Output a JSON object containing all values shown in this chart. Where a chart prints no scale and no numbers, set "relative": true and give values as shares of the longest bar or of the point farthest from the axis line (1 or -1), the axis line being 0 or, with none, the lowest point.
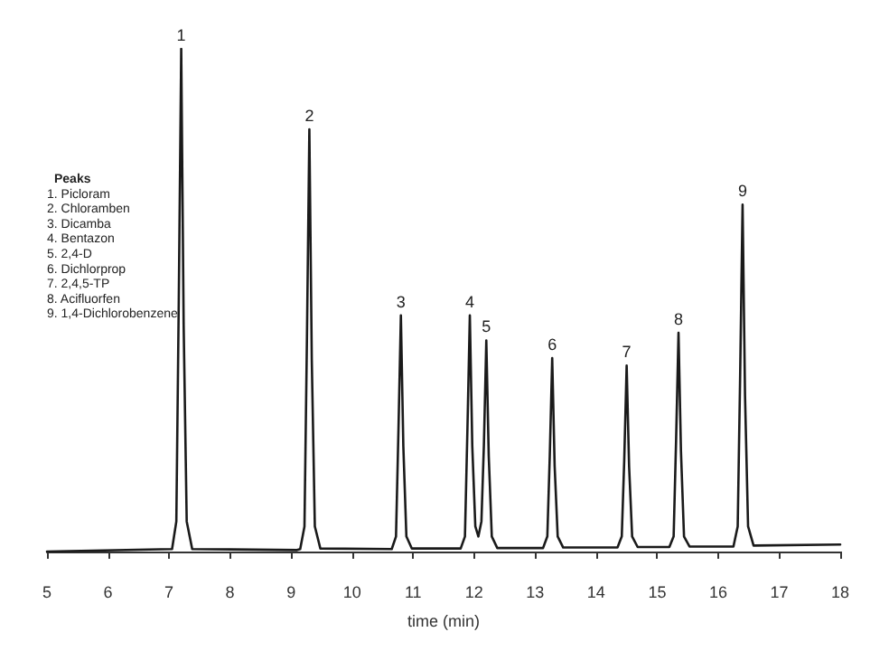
{
  "chart_data": {
    "type": "line",
    "relative": true,
    "xlabel": "time (min)",
    "xlim": [
      5,
      18
    ],
    "xticks": [
      5,
      6,
      7,
      8,
      9,
      10,
      11,
      12,
      13,
      14,
      15,
      16,
      17,
      18
    ],
    "grid": false,
    "marker": "none",
    "line_style": "solid",
    "series": [
      {
        "color": "#1a1a1a",
        "x": [
          5,
          7.05,
          7.12,
          7.16,
          7.2,
          7.24,
          7.29,
          7.38,
          9.1,
          9.15,
          9.22,
          9.26,
          9.3,
          9.34,
          9.39,
          9.48,
          10.65,
          10.72,
          10.76,
          10.8,
          10.84,
          10.89,
          10.98,
          11.78,
          11.85,
          11.89,
          11.93,
          11.97,
          12.02,
          12.07,
          12.12,
          12.16,
          12.2,
          12.24,
          12.29,
          12.38,
          13.13,
          13.2,
          13.24,
          13.28,
          13.32,
          13.37,
          13.46,
          14.35,
          14.42,
          14.46,
          14.5,
          14.54,
          14.59,
          14.68,
          15.2,
          15.27,
          15.31,
          15.35,
          15.39,
          15.44,
          15.53,
          16.25,
          16.32,
          16.36,
          16.4,
          16.44,
          16.49,
          16.58,
          18
        ],
        "values": [
          0,
          0.005,
          0.06,
          0.5,
          1,
          0.45,
          0.06,
          0.005,
          0.003,
          0.005,
          0.05,
          0.42,
          0.84,
          0.38,
          0.05,
          0.006,
          0.005,
          0.03,
          0.24,
          0.47,
          0.21,
          0.03,
          0.006,
          0.006,
          0.03,
          0.24,
          0.47,
          0.21,
          0.05,
          0.03,
          0.06,
          0.21,
          0.42,
          0.19,
          0.03,
          0.007,
          0.007,
          0.03,
          0.19,
          0.385,
          0.17,
          0.03,
          0.008,
          0.008,
          0.03,
          0.18,
          0.37,
          0.17,
          0.03,
          0.009,
          0.009,
          0.03,
          0.22,
          0.435,
          0.2,
          0.03,
          0.01,
          0.01,
          0.05,
          0.35,
          0.69,
          0.31,
          0.05,
          0.012,
          0.014
        ]
      }
    ],
    "annotations": [
      {
        "text": "1",
        "x": 7.2,
        "y": 1
      },
      {
        "text": "2",
        "x": 9.3,
        "y": 0.84
      },
      {
        "text": "3",
        "x": 10.8,
        "y": 0.47
      },
      {
        "text": "4",
        "x": 11.93,
        "y": 0.47
      },
      {
        "text": "5",
        "x": 12.2,
        "y": 0.42
      },
      {
        "text": "6",
        "x": 13.28,
        "y": 0.385
      },
      {
        "text": "7",
        "x": 14.5,
        "y": 0.37
      },
      {
        "text": "8",
        "x": 15.35,
        "y": 0.435
      },
      {
        "text": "9",
        "x": 16.4,
        "y": 0.69
      },
      "Peaks",
      "1. Picloram",
      "2. Chloramben",
      "3. Dicamba",
      "4. Bentazon",
      "5. 2,4-D",
      "6. Dichlorprop",
      "7. 2,4,5-TP",
      "8. Acifluorfen",
      "9. 1,4-Dichlorobenzene"
    ]
  }
}
